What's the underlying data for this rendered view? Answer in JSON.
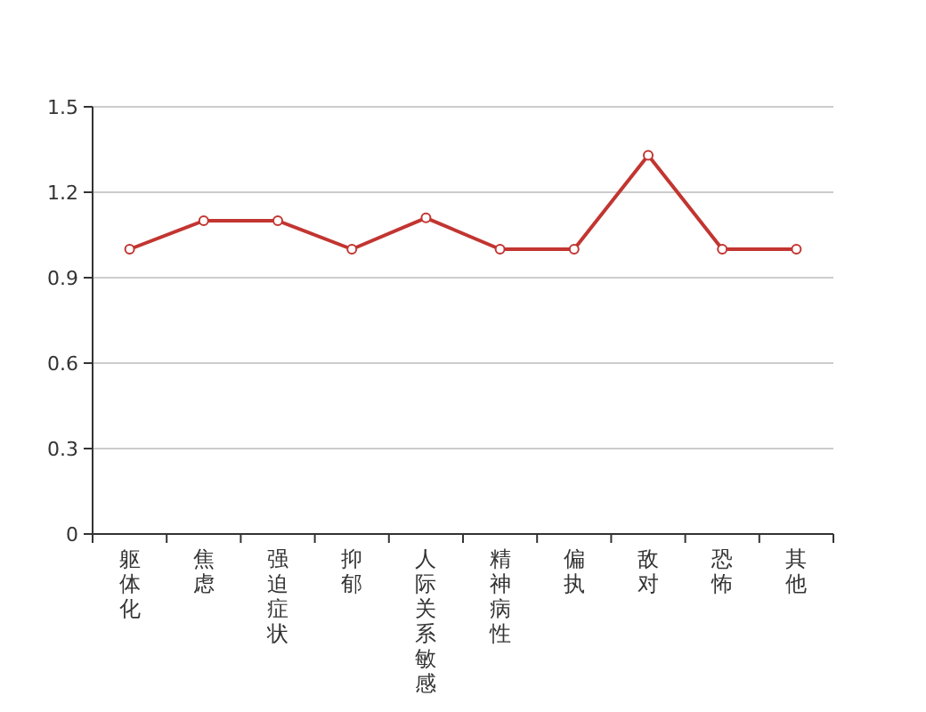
{
  "chart_data": {
    "type": "line",
    "categories": [
      "躯体化",
      "焦虑",
      "强迫症状",
      "抑郁",
      "人际关系敏感",
      "精神病性",
      "偏执",
      "敌对",
      "恐怖",
      "其他"
    ],
    "values": [
      1,
      1.1,
      1.1,
      1,
      1.11,
      1,
      1,
      1.33,
      1,
      1
    ],
    "color": "#c23531",
    "marker": "circle",
    "ylim": [
      0,
      1.5
    ],
    "yticks": [
      0,
      0.3,
      0.6,
      0.9,
      1.2,
      1.5
    ],
    "grid": "y"
  }
}
